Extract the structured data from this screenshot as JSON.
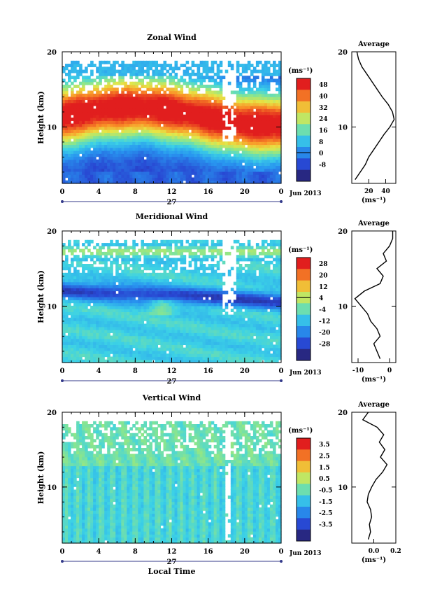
{
  "chart_data": [
    {
      "type": "heatmap",
      "title": "Zonal Wind",
      "ylabel": "Height (km)",
      "xlabel": "",
      "x_ticks": [
        "0",
        "4",
        "8",
        "12",
        "16",
        "20",
        "0"
      ],
      "y_ticks": [
        "10",
        "20"
      ],
      "ylim": [
        2.5,
        20
      ],
      "date_label": "27",
      "date_range": "Jun 2013",
      "colorbar": {
        "unit": "(ms⁻¹)",
        "ticks": [
          "48",
          "40",
          "32",
          "24",
          "16",
          "8",
          "0",
          "-8"
        ],
        "range": [
          -12,
          52
        ]
      },
      "profile": {
        "title": "Average",
        "xlabel": "(ms⁻¹)",
        "x_ticks": [
          "20",
          "40"
        ],
        "xlim": [
          0,
          52
        ],
        "heights": [
          3,
          4,
          5,
          6,
          7,
          8,
          9,
          10,
          11,
          12,
          13,
          14,
          15,
          16,
          17,
          18,
          19,
          20
        ],
        "values": [
          4,
          10,
          16,
          20,
          26,
          32,
          38,
          45,
          50,
          48,
          43,
          36,
          30,
          24,
          18,
          12,
          8,
          6
        ]
      }
    },
    {
      "type": "heatmap",
      "title": "Meridional Wind",
      "ylabel": "Height (km)",
      "xlabel": "",
      "x_ticks": [
        "0",
        "4",
        "8",
        "12",
        "16",
        "20",
        "0"
      ],
      "y_ticks": [
        "10",
        "20"
      ],
      "ylim": [
        2.5,
        20
      ],
      "date_label": "27",
      "date_range": "Jun 2013",
      "colorbar": {
        "unit": "(ms⁻¹)",
        "ticks": [
          "28",
          "20",
          "12",
          "4",
          "-4",
          "-12",
          "-20",
          "-28"
        ],
        "range": [
          -32,
          32
        ]
      },
      "profile": {
        "title": "Average",
        "xlabel": "(ms⁻¹)",
        "x_ticks": [
          "-10",
          "0"
        ],
        "xlim": [
          -12,
          2
        ],
        "heights": [
          3,
          4,
          5,
          6,
          7,
          8,
          9,
          10,
          11,
          12,
          13,
          14,
          15,
          16,
          17,
          18,
          19,
          20
        ],
        "values": [
          -3,
          -4,
          -5,
          -3,
          -4,
          -6,
          -7,
          -9,
          -11,
          -8,
          -3,
          -2,
          -4,
          -1,
          -2,
          0,
          1,
          1
        ]
      }
    },
    {
      "type": "heatmap",
      "title": "Vertical Wind",
      "ylabel": "Height (km)",
      "xlabel": "Local Time",
      "x_ticks": [
        "0",
        "4",
        "8",
        "12",
        "16",
        "20",
        "0"
      ],
      "y_ticks": [
        "10",
        "20"
      ],
      "ylim": [
        2.5,
        20
      ],
      "date_label": "27",
      "date_range": "Jun 2013",
      "colorbar": {
        "unit": "(ms⁻¹)",
        "ticks": [
          "3.5",
          "2.5",
          "1.5",
          "0.5",
          "-0.5",
          "-1.5",
          "-2.5",
          "-3.5"
        ],
        "range": [
          -4,
          4
        ]
      },
      "profile": {
        "title": "Average",
        "xlabel": "(ms⁻¹)",
        "x_ticks": [
          "0.0",
          "0.2"
        ],
        "xlim": [
          -0.2,
          0.2
        ],
        "heights": [
          3,
          4,
          5,
          6,
          7,
          8,
          9,
          10,
          11,
          12,
          13,
          14,
          15,
          16,
          17,
          18,
          19,
          20
        ],
        "values": [
          -0.05,
          -0.03,
          -0.04,
          -0.02,
          -0.03,
          -0.06,
          -0.05,
          -0.02,
          0.02,
          0.08,
          0.12,
          0.06,
          0.1,
          0.05,
          0.09,
          0.03,
          -0.1,
          -0.05
        ]
      }
    }
  ]
}
